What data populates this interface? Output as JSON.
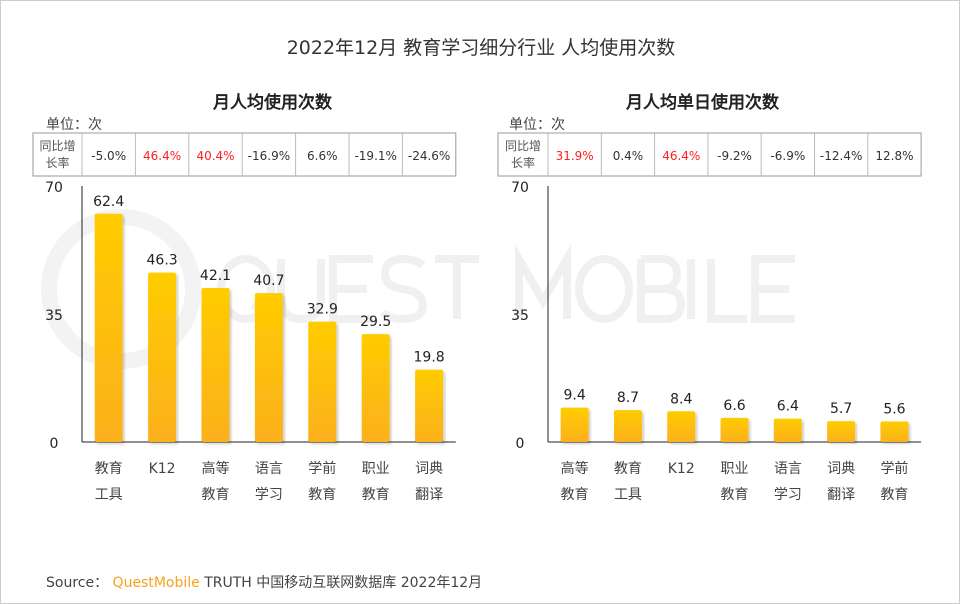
{
  "title": "2022年12月 教育学习细分行业 人均使用次数",
  "watermark": "QUEST MOBILE",
  "source": {
    "label": "Source：",
    "brand": "QuestMobile",
    "text": "TRUTH 中国移动互联网数据库 2022年12月"
  },
  "colors": {
    "bar_top": "#ffcc00",
    "bar_bottom": "#fbb01c",
    "positive_growth": "#ff2020",
    "negative_growth": "#333333"
  },
  "chart_data": [
    {
      "type": "bar",
      "title": "月人均使用次数",
      "unit": "单位：次",
      "growth_header": [
        "同比增",
        "长率"
      ],
      "categories": [
        [
          "教育",
          "工具"
        ],
        [
          "K12",
          ""
        ],
        [
          "高等",
          "教育"
        ],
        [
          "语言",
          "学习"
        ],
        [
          "学前",
          "教育"
        ],
        [
          "职业",
          "教育"
        ],
        [
          "词典",
          "翻译"
        ]
      ],
      "values": [
        62.4,
        46.3,
        42.1,
        40.7,
        32.9,
        29.5,
        19.8
      ],
      "growth": [
        "-5.0%",
        "46.4%",
        "40.4%",
        "-16.9%",
        "6.6%",
        "-19.1%",
        "-24.6%"
      ],
      "growth_highlight": [
        false,
        true,
        true,
        false,
        false,
        false,
        false
      ],
      "yticks": [
        0,
        35,
        70
      ],
      "ylim": [
        0,
        70
      ],
      "grid": false
    },
    {
      "type": "bar",
      "title": "月人均单日使用次数",
      "unit": "单位：次",
      "growth_header": [
        "同比增",
        "长率"
      ],
      "categories": [
        [
          "高等",
          "教育"
        ],
        [
          "教育",
          "工具"
        ],
        [
          "K12",
          ""
        ],
        [
          "职业",
          "教育"
        ],
        [
          "语言",
          "学习"
        ],
        [
          "词典",
          "翻译"
        ],
        [
          "学前",
          "教育"
        ]
      ],
      "values": [
        9.4,
        8.7,
        8.4,
        6.6,
        6.4,
        5.7,
        5.6
      ],
      "growth": [
        "31.9%",
        "0.4%",
        "46.4%",
        "-9.2%",
        "-6.9%",
        "-12.4%",
        "12.8%"
      ],
      "growth_highlight": [
        true,
        false,
        true,
        false,
        false,
        false,
        false
      ],
      "yticks": [
        0,
        35,
        70
      ],
      "ylim": [
        0,
        70
      ],
      "grid": false
    }
  ]
}
